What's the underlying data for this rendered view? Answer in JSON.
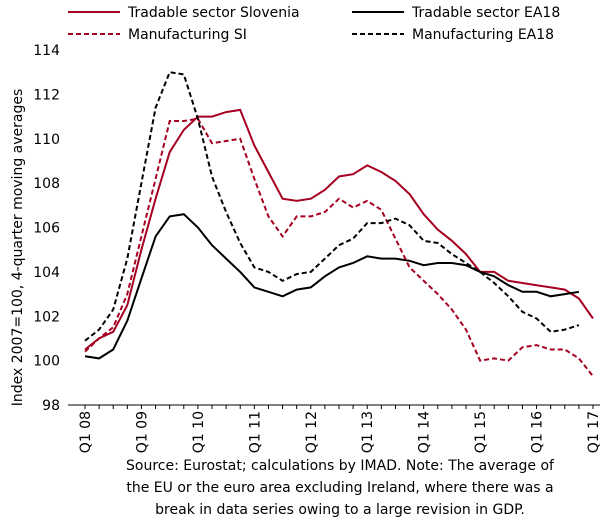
{
  "chart_data": {
    "type": "line",
    "ylabel": "Index 2007=100, 4-quarter moving averages",
    "note": [
      "Source: Eurostat; calculations by IMAD. Note: The average of",
      "the EU or the euro area excluding Ireland, where there was a",
      "break in data series owing to a large revision in GDP."
    ],
    "categories": [
      "Q1 08",
      null,
      null,
      null,
      "Q1 09",
      null,
      null,
      null,
      "Q1 10",
      null,
      null,
      null,
      "Q1 11",
      null,
      null,
      null,
      "Q1 12",
      null,
      null,
      null,
      "Q1 13",
      null,
      null,
      null,
      "Q1 14",
      null,
      null,
      null,
      "Q1 15",
      null,
      null,
      null,
      "Q1 16",
      null,
      null,
      null,
      "Q1 17"
    ],
    "ylim": [
      98,
      114
    ],
    "yticks": [
      98,
      100,
      102,
      104,
      106,
      108,
      110,
      112,
      114
    ],
    "series": [
      {
        "name": "Tradable sector Slovenia",
        "color": "#a50021",
        "dash": false,
        "values": [
          100.5,
          101.0,
          101.3,
          102.5,
          105.0,
          107.3,
          109.4,
          110.4,
          111.0,
          111.0,
          111.2,
          111.3,
          109.7,
          108.5,
          107.3,
          107.2,
          107.3,
          107.7,
          108.3,
          108.4,
          108.8,
          108.5,
          108.1,
          107.5,
          106.6,
          105.9,
          105.4,
          104.8,
          104.0,
          104.0,
          103.6,
          103.5,
          103.4,
          103.3,
          103.2,
          102.8,
          101.9
        ]
      },
      {
        "name": "Tradable sector EA18",
        "color": "#000000",
        "dash": false,
        "values": [
          100.2,
          100.1,
          100.5,
          101.8,
          103.7,
          105.6,
          106.5,
          106.6,
          106.0,
          105.2,
          104.6,
          104.0,
          103.3,
          103.1,
          102.9,
          103.2,
          103.3,
          103.8,
          104.2,
          104.4,
          104.7,
          104.6,
          104.6,
          104.5,
          104.3,
          104.4,
          104.4,
          104.3,
          104.0,
          103.8,
          103.4,
          103.1,
          103.1,
          102.9,
          103.0,
          103.1,
          null
        ]
      },
      {
        "name": "Manufacturing SI",
        "color": "#a50021",
        "dash": true,
        "values": [
          100.4,
          101.0,
          101.5,
          103.0,
          105.6,
          108.2,
          110.8,
          110.8,
          110.9,
          109.8,
          109.9,
          110.0,
          108.2,
          106.5,
          105.6,
          106.5,
          106.5,
          106.7,
          107.3,
          106.9,
          107.2,
          106.8,
          105.5,
          104.2,
          103.6,
          103.0,
          102.3,
          101.4,
          100.0,
          100.1,
          100.0,
          100.6,
          100.7,
          100.5,
          100.5,
          100.1,
          99.3
        ]
      },
      {
        "name": "Manufacturing EA18",
        "color": "#000000",
        "dash": true,
        "values": [
          100.9,
          101.4,
          102.3,
          104.6,
          108.0,
          111.4,
          113.0,
          112.9,
          110.9,
          108.3,
          106.7,
          105.3,
          104.2,
          104.0,
          103.6,
          103.9,
          104.0,
          104.6,
          105.2,
          105.5,
          106.2,
          106.2,
          106.4,
          106.1,
          105.4,
          105.3,
          104.8,
          104.4,
          104.0,
          103.5,
          102.9,
          102.2,
          101.9,
          101.3,
          101.4,
          101.6,
          null
        ]
      }
    ]
  }
}
